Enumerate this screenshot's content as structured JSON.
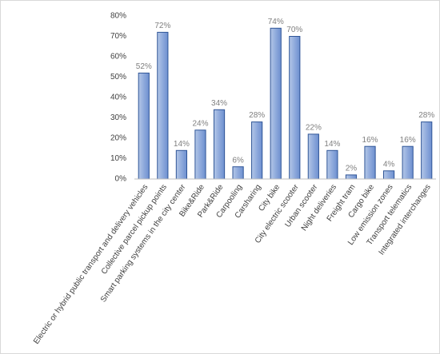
{
  "chart_data": {
    "type": "bar",
    "categories": [
      "Electric or hybrid public transport and delivery vehicles",
      "Collective parcel pickup points",
      "Smart parking systems in the city center",
      "Bike&Ride",
      "Park&Ride",
      "Carpooling",
      "Carsharing",
      "City bike",
      "City electric scooter",
      "Urban scooter",
      "Night deliveries",
      "Freight tram",
      "Cargo bike",
      "Low emission zones",
      "Transport telematics",
      "Integrated interchanges"
    ],
    "values": [
      52,
      72,
      14,
      24,
      34,
      6,
      28,
      74,
      70,
      22,
      14,
      2,
      16,
      4,
      16,
      28
    ],
    "value_labels": [
      "52%",
      "72%",
      "14%",
      "24%",
      "34%",
      "6%",
      "28%",
      "74%",
      "70%",
      "22%",
      "14%",
      "2%",
      "16%",
      "4%",
      "16%",
      "28%"
    ],
    "color": "#8faadc",
    "ylim": [
      0,
      80
    ],
    "yticks": [
      {
        "value": 0,
        "label": "0%"
      },
      {
        "value": 10,
        "label": "10%"
      },
      {
        "value": 20,
        "label": "20%"
      },
      {
        "value": 30,
        "label": "30%"
      },
      {
        "value": 40,
        "label": "40%"
      },
      {
        "value": 50,
        "label": "50%"
      },
      {
        "value": 60,
        "label": "60%"
      },
      {
        "value": 70,
        "label": "70%"
      },
      {
        "value": 80,
        "label": "80%"
      }
    ],
    "grid": false
  }
}
